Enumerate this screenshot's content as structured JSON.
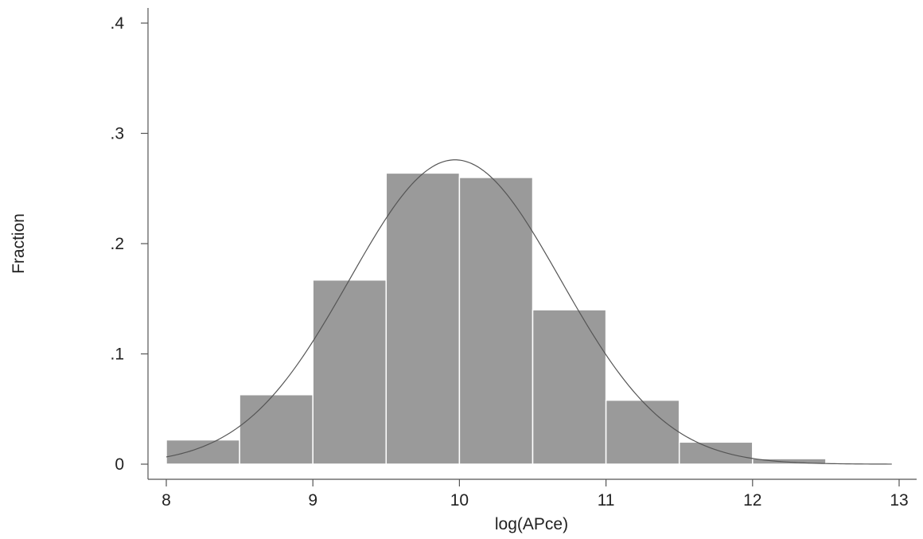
{
  "chart_data": {
    "type": "bar",
    "subtype": "histogram",
    "xlabel": "log(APce)",
    "ylabel": "Fraction",
    "xlim": [
      8,
      13
    ],
    "ylim": [
      0,
      0.4
    ],
    "x_ticks": [
      8,
      9,
      10,
      11,
      12,
      13
    ],
    "x_tick_labels": [
      "8",
      "9",
      "10",
      "11",
      "12",
      "13"
    ],
    "y_ticks": [
      0,
      0.1,
      0.2,
      0.3,
      0.4
    ],
    "y_tick_labels": [
      "0",
      ".1",
      ".2",
      ".3",
      ".4"
    ],
    "bin_width": 0.5,
    "bins": [
      {
        "start": 8.0,
        "end": 8.5,
        "value": 0.022
      },
      {
        "start": 8.5,
        "end": 9.0,
        "value": 0.063
      },
      {
        "start": 9.0,
        "end": 9.5,
        "value": 0.167
      },
      {
        "start": 9.5,
        "end": 10.0,
        "value": 0.264
      },
      {
        "start": 10.0,
        "end": 10.5,
        "value": 0.26
      },
      {
        "start": 10.5,
        "end": 11.0,
        "value": 0.14
      },
      {
        "start": 11.0,
        "end": 11.5,
        "value": 0.058
      },
      {
        "start": 11.5,
        "end": 12.0,
        "value": 0.02
      },
      {
        "start": 12.0,
        "end": 12.5,
        "value": 0.005
      }
    ],
    "normal_overlay": {
      "mean": 9.97,
      "sd": 0.72,
      "peak": 0.276
    },
    "bar_color": "#9a9a9a",
    "grid": false
  }
}
